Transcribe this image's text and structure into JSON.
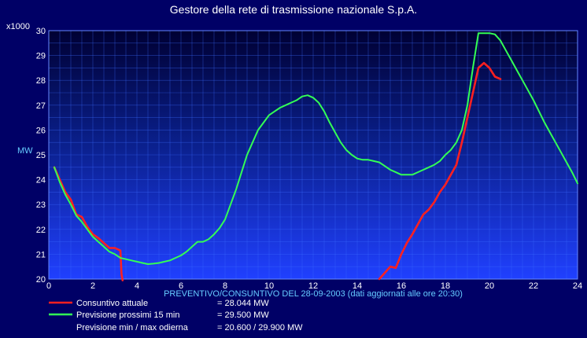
{
  "title": "Gestore della rete di trasmissione nazionale S.p.A.",
  "chart_data": {
    "type": "line",
    "scale_label": "x1000",
    "ylabel": "MW",
    "xlabel": "PREVENTIVO/CONSUNTIVO DEL 28-09-2003 (dati aggiornati alle ore 20:30)",
    "xlim": [
      0,
      24
    ],
    "ylim": [
      20,
      30
    ],
    "x_ticks": [
      0,
      2,
      4,
      6,
      8,
      10,
      12,
      14,
      16,
      18,
      20,
      22,
      24
    ],
    "y_ticks": [
      20,
      21,
      22,
      23,
      24,
      25,
      26,
      27,
      28,
      29,
      30
    ],
    "grid": true,
    "series": [
      {
        "name": "Consuntivo attuale",
        "color": "#ff2020",
        "segments": [
          {
            "x": [
              0.25,
              0.5,
              0.75,
              1.0,
              1.25,
              1.5,
              1.75,
              2.0,
              2.25,
              2.5,
              2.75,
              3.0,
              3.25,
              3.3,
              3.35
            ],
            "y": [
              24.5,
              24.0,
              23.5,
              23.2,
              22.6,
              22.5,
              22.1,
              21.8,
              21.65,
              21.45,
              21.25,
              21.25,
              21.15,
              20.2,
              19.9
            ]
          },
          {
            "x": [
              15.0,
              15.25,
              15.5,
              15.75,
              16.0,
              16.25,
              16.5,
              16.75,
              17.0,
              17.25,
              17.5,
              17.75,
              18.0,
              18.25,
              18.5,
              18.75,
              19.0,
              19.25,
              19.5,
              19.75,
              20.0,
              20.25,
              20.5
            ],
            "y": [
              20.0,
              20.25,
              20.5,
              20.45,
              21.0,
              21.45,
              21.8,
              22.2,
              22.6,
              22.8,
              23.1,
              23.5,
              23.8,
              24.2,
              24.6,
              25.5,
              26.5,
              27.5,
              28.5,
              28.7,
              28.5,
              28.15,
              28.05
            ]
          }
        ]
      },
      {
        "name": "Previsione  prossimi  15 min",
        "color": "#33ff55",
        "segments": [
          {
            "x": [
              0.25,
              0.5,
              0.75,
              1.0,
              1.25,
              1.5,
              1.75,
              2.0,
              2.25,
              2.5,
              2.75,
              3.0,
              3.25,
              3.5,
              3.75,
              4.0,
              4.25,
              4.5,
              4.75,
              5.0,
              5.25,
              5.5,
              5.75,
              6.0,
              6.25,
              6.5,
              6.75,
              7.0,
              7.25,
              7.5,
              7.75,
              8.0,
              8.25,
              8.5,
              8.75,
              9.0,
              9.25,
              9.5,
              9.75,
              10.0,
              10.25,
              10.5,
              10.75,
              11.0,
              11.25,
              11.5,
              11.75,
              12.0,
              12.25,
              12.5,
              12.75,
              13.0,
              13.25,
              13.5,
              13.75,
              14.0,
              14.25,
              14.5,
              14.75,
              15.0,
              15.25,
              15.5,
              15.75,
              16.0,
              16.25,
              16.5,
              16.75,
              17.0,
              17.25,
              17.5,
              17.75,
              18.0,
              18.25,
              18.5,
              18.75,
              19.0,
              19.25,
              19.5,
              19.75,
              20.0,
              20.25,
              20.5,
              20.75,
              21.0,
              21.25,
              21.5,
              21.75,
              22.0,
              22.25,
              22.5,
              22.75,
              23.0,
              23.25,
              23.5,
              23.75,
              24.0
            ],
            "y": [
              24.5,
              23.9,
              23.4,
              23.0,
              22.55,
              22.3,
              22.0,
              21.7,
              21.5,
              21.3,
              21.1,
              21.0,
              20.85,
              20.8,
              20.75,
              20.7,
              20.65,
              20.6,
              20.62,
              20.65,
              20.7,
              20.75,
              20.85,
              20.95,
              21.1,
              21.3,
              21.5,
              21.5,
              21.6,
              21.8,
              22.05,
              22.4,
              23.0,
              23.6,
              24.3,
              25.0,
              25.5,
              26.0,
              26.3,
              26.6,
              26.75,
              26.9,
              27.0,
              27.1,
              27.2,
              27.35,
              27.4,
              27.3,
              27.1,
              26.75,
              26.3,
              25.9,
              25.5,
              25.2,
              25.0,
              24.85,
              24.8,
              24.8,
              24.75,
              24.7,
              24.55,
              24.4,
              24.3,
              24.2,
              24.2,
              24.2,
              24.3,
              24.4,
              24.5,
              24.6,
              24.75,
              25.0,
              25.2,
              25.5,
              26.0,
              27.0,
              28.5,
              29.9,
              29.9,
              29.9,
              29.85,
              29.6,
              29.2,
              28.8,
              28.4,
              28.0,
              27.6,
              27.2,
              26.75,
              26.3,
              25.9,
              25.5,
              25.1,
              24.7,
              24.3,
              23.85
            ]
          }
        ]
      }
    ],
    "legend": [
      {
        "label": "Consuntivo attuale",
        "value": "= 28.044 MW",
        "color": "#ff2020"
      },
      {
        "label": "Previsione  prossimi  15 min",
        "value": "= 29.500 MW",
        "color": "#33ff55"
      },
      {
        "label": "Previsione min / max odierna",
        "value": "= 20.600 / 29.900 MW",
        "color": ""
      }
    ],
    "legend_placement": "bottom-left"
  }
}
